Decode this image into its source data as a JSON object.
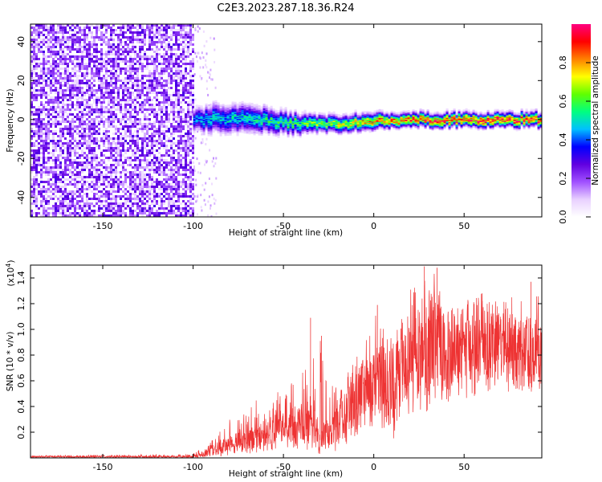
{
  "title": "C2E3.2023.287.18.36.R24",
  "chart_data": [
    {
      "type": "heatmap",
      "xlabel": "Height of straight line (km)",
      "ylabel": "Frequency (Hz)",
      "xlim": [
        -190,
        93
      ],
      "ylim": [
        -50,
        49
      ],
      "x_ticks": [
        -150,
        -100,
        -50,
        0,
        50
      ],
      "y_ticks": [
        40,
        20,
        0,
        -20,
        -40
      ],
      "colorbar": {
        "label": "Normalized spectral amplitude",
        "range": [
          0,
          1
        ],
        "ticks": [
          "0.0",
          "0.2",
          "0.4",
          "0.6",
          "0.8"
        ],
        "colors": [
          "#ffffff",
          "#e8d0ff",
          "#a050ff",
          "#6000e0",
          "#0000ff",
          "#00c0ff",
          "#00ff80",
          "#60ff00",
          "#ffff00",
          "#ff8000",
          "#ff0000",
          "#ff0080"
        ]
      },
      "noise_region": {
        "x_range": [
          -190,
          -100
        ],
        "amplitude_range": [
          0.05,
          0.3
        ]
      },
      "signal_band": [
        {
          "x": -100,
          "center_hz": 0,
          "half_width_hz": 4,
          "peak_amplitude": 0.45
        },
        {
          "x": -90,
          "center_hz": 1,
          "half_width_hz": 5,
          "peak_amplitude": 0.5
        },
        {
          "x": -80,
          "center_hz": 1,
          "half_width_hz": 5,
          "peak_amplitude": 0.5
        },
        {
          "x": -70,
          "center_hz": 1,
          "half_width_hz": 5,
          "peak_amplitude": 0.52
        },
        {
          "x": -60,
          "center_hz": 0,
          "half_width_hz": 4.5,
          "peak_amplitude": 0.55
        },
        {
          "x": -50,
          "center_hz": -1,
          "half_width_hz": 4,
          "peak_amplitude": 0.6
        },
        {
          "x": -40,
          "center_hz": -2,
          "half_width_hz": 3.5,
          "peak_amplitude": 0.62
        },
        {
          "x": -30,
          "center_hz": -2,
          "half_width_hz": 3,
          "peak_amplitude": 0.68
        },
        {
          "x": -20,
          "center_hz": -1.5,
          "half_width_hz": 3,
          "peak_amplitude": 0.72
        },
        {
          "x": -10,
          "center_hz": -1,
          "half_width_hz": 3,
          "peak_amplitude": 0.78
        },
        {
          "x": 0,
          "center_hz": 0,
          "half_width_hz": 3,
          "peak_amplitude": 0.82
        },
        {
          "x": 10,
          "center_hz": 0.5,
          "half_width_hz": 2.5,
          "peak_amplitude": 0.86
        },
        {
          "x": 20,
          "center_hz": 0.5,
          "half_width_hz": 2.5,
          "peak_amplitude": 0.88
        },
        {
          "x": 30,
          "center_hz": 0.5,
          "half_width_hz": 2.5,
          "peak_amplitude": 0.9
        },
        {
          "x": 40,
          "center_hz": 0.5,
          "half_width_hz": 2.5,
          "peak_amplitude": 0.92
        },
        {
          "x": 50,
          "center_hz": 0.5,
          "half_width_hz": 2.5,
          "peak_amplitude": 0.93
        },
        {
          "x": 60,
          "center_hz": 0.5,
          "half_width_hz": 2.5,
          "peak_amplitude": 0.94
        },
        {
          "x": 70,
          "center_hz": 0.5,
          "half_width_hz": 2.5,
          "peak_amplitude": 0.95
        },
        {
          "x": 80,
          "center_hz": 0.5,
          "half_width_hz": 2.5,
          "peak_amplitude": 0.95
        },
        {
          "x": 93,
          "center_hz": 0.5,
          "half_width_hz": 2.5,
          "peak_amplitude": 0.95
        }
      ]
    },
    {
      "type": "line",
      "xlabel": "Height of straight line (km)",
      "ylabel": "SNR (10 * v/v)",
      "scale_label": "(x10",
      "scale_exponent": "4",
      "scale_close": ")",
      "xlim": [
        -190,
        93
      ],
      "ylim": [
        0,
        1.5
      ],
      "x_ticks": [
        -150,
        -100,
        -50,
        0,
        50
      ],
      "y_ticks": [
        "0.2",
        "0.4",
        "0.6",
        "0.8",
        "1.0",
        "1.2",
        "1.4"
      ],
      "series": [
        {
          "color": "#ee3333",
          "envelope": {
            "x": [
              -190,
              -100,
              -95,
              -90,
              -80,
              -70,
              -60,
              -55,
              -50,
              -45,
              -40,
              -35,
              -30,
              -25,
              -20,
              -15,
              -10,
              -5,
              0,
              5,
              10,
              15,
              20,
              25,
              30,
              35,
              40,
              50,
              60,
              70,
              80,
              93
            ],
            "y_low": [
              0.0,
              0.0,
              0.0,
              0.0,
              0.02,
              0.03,
              0.05,
              0.05,
              0.07,
              0.05,
              0.08,
              0.05,
              0.03,
              0.02,
              0.05,
              0.1,
              0.15,
              0.2,
              0.25,
              0.2,
              0.1,
              0.25,
              0.3,
              0.3,
              0.35,
              0.35,
              0.4,
              0.45,
              0.5,
              0.5,
              0.5,
              0.5
            ],
            "y_mid": [
              0.01,
              0.01,
              0.03,
              0.06,
              0.1,
              0.15,
              0.2,
              0.22,
              0.25,
              0.25,
              0.3,
              0.3,
              0.2,
              0.18,
              0.3,
              0.42,
              0.5,
              0.55,
              0.6,
              0.62,
              0.55,
              0.7,
              0.78,
              0.85,
              0.9,
              0.92,
              0.88,
              0.9,
              0.92,
              0.9,
              0.88,
              0.85
            ],
            "y_high": [
              0.02,
              0.03,
              0.08,
              0.15,
              0.3,
              0.4,
              0.5,
              0.5,
              0.55,
              0.6,
              0.65,
              0.8,
              1.0,
              0.55,
              0.6,
              0.7,
              0.85,
              0.9,
              1.15,
              1.1,
              0.95,
              1.2,
              1.3,
              1.45,
              1.4,
              1.45,
              1.3,
              1.25,
              1.3,
              1.2,
              1.3,
              1.3
            ]
          },
          "spikes": [
            {
              "x": -35,
              "y": 1.09
            },
            {
              "x": -29,
              "y": 0.95
            },
            {
              "x": 2,
              "y": 1.19
            },
            {
              "x": 28,
              "y": 1.49
            },
            {
              "x": 35,
              "y": 1.48
            },
            {
              "x": 87,
              "y": 1.37
            },
            {
              "x": 60,
              "y": 1.28
            }
          ]
        }
      ]
    }
  ]
}
